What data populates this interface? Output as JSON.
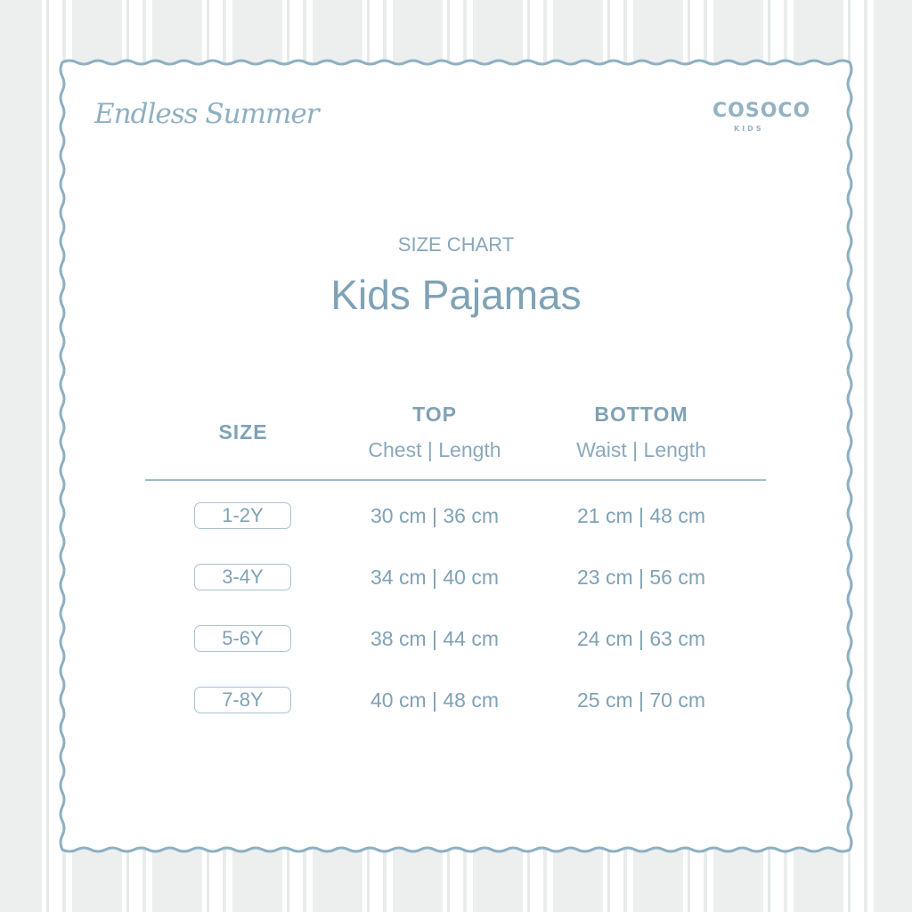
{
  "brand": {
    "script_title": "Endless Summer",
    "logo_word": "COSOCO",
    "logo_sub": "KIDS"
  },
  "header": {
    "subtitle": "SIZE CHART",
    "title": "Kids Pajamas"
  },
  "table": {
    "columns": [
      {
        "label": "SIZE",
        "sub": ""
      },
      {
        "label": "TOP",
        "sub": "Chest | Length"
      },
      {
        "label": "BOTTOM",
        "sub": "Waist | Length"
      }
    ],
    "rows": [
      {
        "size": "1-2Y",
        "top": "30 cm | 36 cm",
        "bottom": "21 cm | 48 cm"
      },
      {
        "size": "3-4Y",
        "top": "34 cm | 40 cm",
        "bottom": "23 cm | 56 cm"
      },
      {
        "size": "5-6Y",
        "top": "38 cm | 44 cm",
        "bottom": "24 cm  | 63 cm"
      },
      {
        "size": "7-8Y",
        "top": "40 cm | 48 cm",
        "bottom": "25 cm | 70 cm"
      }
    ]
  },
  "colors": {
    "accent": "#7fa2b6",
    "border": "#8eb0c4",
    "background": "#edefee"
  }
}
